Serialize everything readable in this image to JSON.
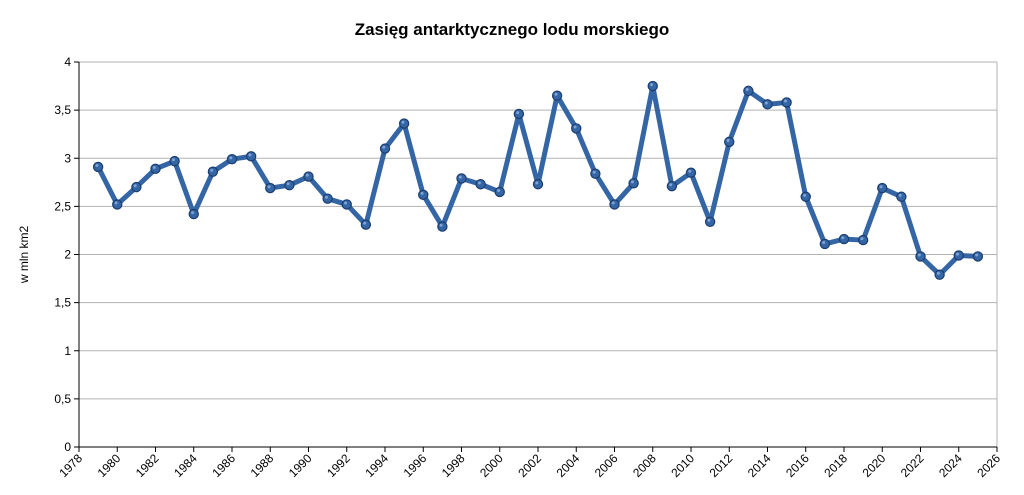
{
  "chart_data": {
    "type": "line",
    "title": "Zasięg antarktycznego lodu morskiego",
    "xlabel": "",
    "ylabel": "w mln km2",
    "xlim": [
      1978,
      2026
    ],
    "ylim": [
      0,
      4
    ],
    "x_ticks": [
      "1978",
      "1980",
      "1982",
      "1984",
      "1986",
      "1988",
      "1990",
      "1992",
      "1994",
      "1996",
      "1998",
      "2000",
      "2002",
      "2004",
      "2006",
      "2008",
      "2010",
      "2012",
      "2014",
      "2016",
      "2018",
      "2020",
      "2022",
      "2024",
      "2026"
    ],
    "y_ticks": [
      "0",
      "0,5",
      "1",
      "1,5",
      "2",
      "2,5",
      "3",
      "3,5",
      "4"
    ],
    "grid": true,
    "colors": {
      "line": "#3465a4",
      "marker": "#3465a4",
      "grid": "#b3b3b3",
      "axis": "#000000"
    },
    "series": [
      {
        "x": [
          1979,
          1980,
          1981,
          1982,
          1983,
          1984,
          1985,
          1986,
          1987,
          1988,
          1989,
          1990,
          1991,
          1992,
          1993,
          1994,
          1995,
          1996,
          1997,
          1998,
          1999,
          2000,
          2001,
          2002,
          2003,
          2004,
          2005,
          2006,
          2007,
          2008,
          2009,
          2010,
          2011,
          2012,
          2013,
          2014,
          2015,
          2016,
          2017,
          2018,
          2019,
          2020,
          2021,
          2022,
          2023,
          2024,
          2025
        ],
        "values": [
          2.91,
          2.52,
          2.7,
          2.89,
          2.97,
          2.42,
          2.86,
          2.99,
          3.02,
          2.69,
          2.72,
          2.81,
          2.58,
          2.52,
          2.31,
          3.1,
          3.36,
          2.62,
          2.29,
          2.79,
          2.73,
          2.65,
          3.46,
          2.73,
          3.65,
          3.31,
          2.84,
          2.52,
          2.74,
          3.75,
          2.71,
          2.85,
          2.34,
          3.17,
          3.7,
          3.56,
          3.58,
          2.6,
          2.11,
          2.16,
          2.15,
          2.69,
          2.6,
          1.98,
          1.79,
          1.99,
          1.98
        ]
      }
    ]
  }
}
